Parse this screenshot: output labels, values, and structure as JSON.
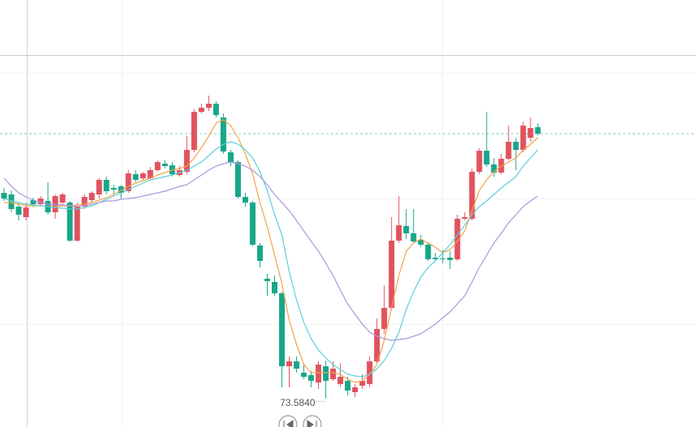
{
  "chart_data": {
    "type": "candlestick",
    "ylim": [
      73.23,
      78.5
    ],
    "up_color": "#e0535f",
    "down_color": "#19a68a",
    "open": [
      76.12,
      76.1,
      75.95,
      75.82,
      76.03,
      75.98,
      76.02,
      75.88,
      76.0,
      76.0,
      75.53,
      75.95,
      76.03,
      76.1,
      76.28,
      76.18,
      76.2,
      76.14,
      76.35,
      76.3,
      76.3,
      76.4,
      76.48,
      76.46,
      76.34,
      76.38,
      76.65,
      77.12,
      77.17,
      77.22,
      77.05,
      76.62,
      76.5,
      76.07,
      76.0,
      75.47,
      75.06,
      75.02,
      74.88,
      73.98,
      74.04,
      73.9,
      73.87,
      73.78,
      73.98,
      73.82,
      73.76,
      73.8,
      73.66,
      73.74,
      73.76,
      74.04,
      74.44,
      74.7,
      75.53,
      75.71,
      75.62,
      75.54,
      75.48,
      75.32,
      75.31,
      75.32,
      75.3,
      75.8,
      75.8,
      76.38,
      76.64,
      76.47,
      76.37,
      76.54,
      76.75,
      76.65,
      76.8,
      76.93
    ],
    "high": [
      76.18,
      76.15,
      76.0,
      76.0,
      76.06,
      76.08,
      76.25,
      76.1,
      76.12,
      76.02,
      76.0,
      76.1,
      76.14,
      76.3,
      76.32,
      76.22,
      76.22,
      76.4,
      76.4,
      76.38,
      76.44,
      76.52,
      76.52,
      76.5,
      76.45,
      76.82,
      77.15,
      77.22,
      77.32,
      77.25,
      77.1,
      76.65,
      76.52,
      76.12,
      76.02,
      75.5,
      75.12,
      75.1,
      74.9,
      74.1,
      74.1,
      74.02,
      73.92,
      74.04,
      74.05,
      74.04,
      74.02,
      73.85,
      73.76,
      73.88,
      74.1,
      74.57,
      74.98,
      75.82,
      76.08,
      75.92,
      75.92,
      75.6,
      75.5,
      75.38,
      75.42,
      75.4,
      75.85,
      75.88,
      76.42,
      76.67,
      77.12,
      76.55,
      76.6,
      76.95,
      76.8,
      77.0,
      77.05,
      76.98
    ],
    "low": [
      76.02,
      75.88,
      75.78,
      75.78,
      75.95,
      75.95,
      75.85,
      75.8,
      75.98,
      75.52,
      75.52,
      75.92,
      76.0,
      76.05,
      76.1,
      76.1,
      76.05,
      76.12,
      76.25,
      76.28,
      76.28,
      76.38,
      76.42,
      76.32,
      76.32,
      76.35,
      76.62,
      77.1,
      77.13,
      77.05,
      76.6,
      76.45,
      76.05,
      75.95,
      75.46,
      75.2,
      74.85,
      74.85,
      73.72,
      73.72,
      73.9,
      73.82,
      73.72,
      73.7,
      73.584,
      73.8,
      73.72,
      73.62,
      73.6,
      73.7,
      73.72,
      74.02,
      74.38,
      74.67,
      75.5,
      75.55,
      75.5,
      75.45,
      75.28,
      75.28,
      75.25,
      75.18,
      75.28,
      75.78,
      75.78,
      76.35,
      76.44,
      76.32,
      76.35,
      76.52,
      76.4,
      76.62,
      76.75,
      76.83
    ],
    "close": [
      76.05,
      75.92,
      75.85,
      75.94,
      75.98,
      76.05,
      75.88,
      76.08,
      76.1,
      75.53,
      75.95,
      76.07,
      76.12,
      76.28,
      76.14,
      76.16,
      76.12,
      76.36,
      76.28,
      76.36,
      76.4,
      76.5,
      76.45,
      76.35,
      76.4,
      76.65,
      77.12,
      77.17,
      77.22,
      77.08,
      76.63,
      76.5,
      76.07,
      76.0,
      75.48,
      75.28,
      75.03,
      74.88,
      73.98,
      74.04,
      73.95,
      73.85,
      73.8,
      74.0,
      73.8,
      73.95,
      73.85,
      73.68,
      73.72,
      73.8,
      74.04,
      74.44,
      74.7,
      75.53,
      75.72,
      75.62,
      75.52,
      75.48,
      75.3,
      75.3,
      75.3,
      75.29,
      75.8,
      75.82,
      76.38,
      76.64,
      76.47,
      76.37,
      76.54,
      76.75,
      76.65,
      76.95,
      76.92,
      76.85
    ],
    "lines": [
      {
        "color": "#f4a24a",
        "values": [
          76.0,
          76.0,
          75.98,
          75.96,
          75.96,
          75.96,
          75.95,
          75.95,
          75.96,
          75.96,
          75.97,
          75.98,
          76.0,
          76.03,
          76.06,
          76.1,
          76.15,
          76.2,
          76.24,
          76.27,
          76.3,
          76.34,
          76.37,
          76.4,
          76.42,
          76.45,
          76.55,
          76.68,
          76.82,
          76.98,
          77.02,
          76.95,
          76.8,
          76.6,
          76.35,
          76.0,
          75.7,
          75.35,
          75.0,
          74.55,
          74.25,
          74.0,
          73.9,
          73.9,
          73.9,
          73.9,
          73.88,
          73.82,
          73.78,
          73.8,
          73.88,
          74.0,
          74.3,
          74.7,
          75.1,
          75.4,
          75.5,
          75.55,
          75.5,
          75.45,
          75.38,
          75.42,
          75.52,
          75.65,
          75.9,
          76.15,
          76.28,
          76.38,
          76.45,
          76.5,
          76.55,
          76.65,
          76.72,
          76.8
        ]
      },
      {
        "color": "#5ccfd8",
        "values": [
          76.05,
          76.02,
          76.0,
          75.98,
          75.97,
          75.96,
          75.95,
          75.94,
          75.93,
          75.92,
          75.92,
          75.94,
          75.96,
          76.0,
          76.04,
          76.08,
          76.12,
          76.16,
          76.2,
          76.24,
          76.28,
          76.3,
          76.32,
          76.34,
          76.37,
          76.4,
          76.45,
          76.5,
          76.58,
          76.66,
          76.72,
          76.75,
          76.72,
          76.65,
          76.55,
          76.38,
          76.15,
          75.85,
          75.6,
          75.15,
          74.8,
          74.52,
          74.32,
          74.18,
          74.08,
          74.0,
          73.94,
          73.88,
          73.86,
          73.85,
          73.88,
          73.95,
          74.05,
          74.2,
          74.4,
          74.68,
          74.9,
          75.08,
          75.2,
          75.28,
          75.38,
          75.48,
          75.6,
          75.72,
          75.85,
          75.95,
          76.02,
          76.1,
          76.18,
          76.25,
          76.32,
          76.45,
          76.55,
          76.65
        ]
      },
      {
        "color": "#a899dc",
        "values": [
          76.3,
          76.2,
          76.12,
          76.07,
          76.03,
          76.0,
          75.98,
          75.98,
          75.97,
          75.96,
          75.95,
          75.96,
          75.98,
          76.0,
          76.02,
          76.02,
          76.04,
          76.05,
          76.06,
          76.08,
          76.1,
          76.12,
          76.14,
          76.17,
          76.2,
          76.22,
          76.28,
          76.34,
          76.4,
          76.45,
          76.48,
          76.5,
          76.48,
          76.45,
          76.4,
          76.32,
          76.22,
          76.1,
          76.0,
          75.9,
          75.78,
          75.65,
          75.52,
          75.4,
          75.25,
          75.1,
          74.92,
          74.75,
          74.62,
          74.5,
          74.4,
          74.35,
          74.32,
          74.3,
          74.31,
          74.32,
          74.35,
          74.38,
          74.44,
          74.5,
          74.58,
          74.65,
          74.75,
          74.85,
          75.02,
          75.2,
          75.35,
          75.5,
          75.62,
          75.75,
          75.85,
          75.95,
          76.02,
          76.08
        ]
      }
    ],
    "last_price": 76.85,
    "last_price_color": "#6fd0c0",
    "min_annotation": {
      "value": 73.584,
      "label": "73.5840"
    }
  }
}
